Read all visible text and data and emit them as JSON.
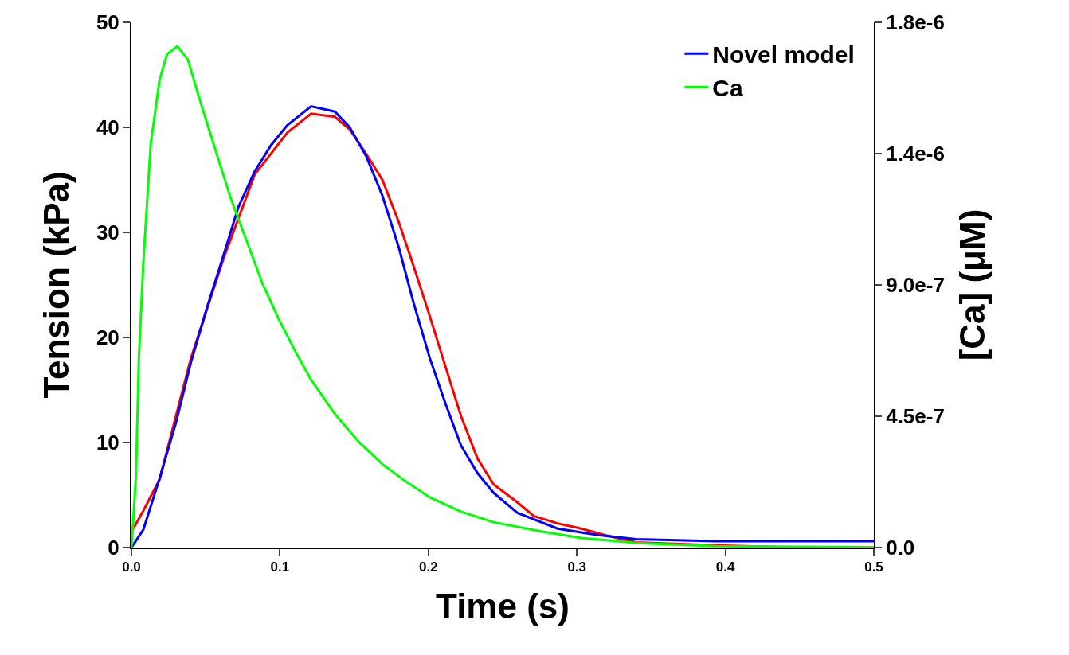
{
  "chart_data": {
    "type": "line",
    "xlabel": "Time (s)",
    "ylabel": "Tension (kPa)",
    "y2label": "[Ca] (μM)",
    "xlim": [
      0,
      0.5
    ],
    "xticks": [
      {
        "value": 0,
        "label": "0.0"
      },
      {
        "value": 0.1,
        "label": "0.1"
      },
      {
        "value": 0.2,
        "label": "0.2"
      },
      {
        "value": 0.3,
        "label": "0.3"
      },
      {
        "value": 0.4,
        "label": "0.4"
      },
      {
        "value": 0.5,
        "label": "0.5"
      }
    ],
    "ylim": [
      0,
      50
    ],
    "yticks": [
      0,
      10,
      20,
      30,
      40,
      50
    ],
    "y2lim": [
      0,
      1.8e-06
    ],
    "y2ticks": [
      {
        "value": 0,
        "label": "0.0"
      },
      {
        "value": 4.5e-07,
        "label": "4.5e-7"
      },
      {
        "value": 9e-07,
        "label": "9.0e-7"
      },
      {
        "value": 1.35e-06,
        "label": "1.4e-6"
      },
      {
        "value": 1.8e-06,
        "label": "1.8e-6"
      }
    ],
    "grid": false,
    "legend": "top right",
    "series": [
      {
        "color": "#ff0000",
        "x": [
          0,
          0.008,
          0.019,
          0.04,
          0.062,
          0.083,
          0.105,
          0.121,
          0.137,
          0.147,
          0.158,
          0.169,
          0.18,
          0.19,
          0.201,
          0.212,
          0.222,
          0.233,
          0.244,
          0.26,
          0.271,
          0.287,
          0.303,
          0.324,
          0.34,
          0.394,
          0.448,
          0.5
        ],
        "values": [
          1.5,
          3.5,
          6.5,
          18,
          27.5,
          35.5,
          39.5,
          41.3,
          41,
          39.8,
          37.5,
          35,
          31,
          26.8,
          22,
          17,
          12.5,
          8.5,
          6,
          4.3,
          3,
          2.3,
          1.8,
          1,
          0.5,
          0.2,
          0,
          0
        ]
      },
      {
        "name": "Novel model",
        "color": "#0000ff",
        "x": [
          0,
          0.008,
          0.019,
          0.03,
          0.04,
          0.051,
          0.062,
          0.072,
          0.083,
          0.094,
          0.105,
          0.121,
          0.137,
          0.147,
          0.158,
          0.169,
          0.18,
          0.19,
          0.201,
          0.212,
          0.222,
          0.233,
          0.244,
          0.26,
          0.287,
          0.314,
          0.34,
          0.394,
          0.5
        ],
        "values": [
          0,
          1.7,
          6.6,
          11.9,
          17.6,
          22.9,
          27.8,
          32.4,
          35.8,
          38.3,
          40.2,
          42,
          41.5,
          40,
          37.3,
          33.5,
          28.6,
          23.3,
          18,
          13.5,
          9.7,
          7.1,
          5.2,
          3.3,
          1.8,
          1.2,
          0.8,
          0.6,
          0.6
        ]
      },
      {
        "name": "Ca",
        "color": "#00ff00",
        "axis": "y2",
        "x": [
          0,
          0.003,
          0.005,
          0.008,
          0.013,
          0.019,
          0.024,
          0.031,
          0.038,
          0.046,
          0.056,
          0.067,
          0.078,
          0.088,
          0.099,
          0.11,
          0.121,
          0.137,
          0.153,
          0.169,
          0.185,
          0.201,
          0.222,
          0.244,
          0.276,
          0.303,
          0.34,
          0.394,
          0.448,
          0.5
        ],
        "values": [
          0,
          2.4e-07,
          6.49e-07,
          9.76e-07,
          1.385e-06,
          1.604e-06,
          1.691e-06,
          1.718e-06,
          1.672e-06,
          1.535e-06,
          1.372e-06,
          1.195e-06,
          1.045e-06,
          9.08e-07,
          7.85e-07,
          6.76e-07,
          5.75e-07,
          4.58e-07,
          3.63e-07,
          2.86e-07,
          2.26e-07,
          1.72e-07,
          1.23e-07,
          8.7e-08,
          5.5e-08,
          3.3e-08,
          1.6e-08,
          5e-09,
          3e-09,
          0
        ]
      }
    ]
  }
}
